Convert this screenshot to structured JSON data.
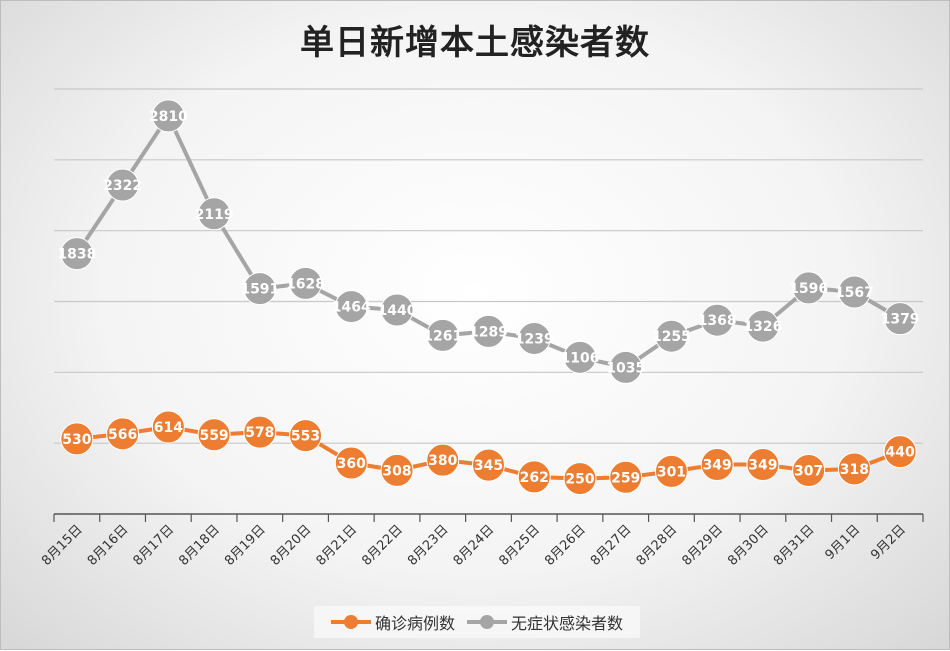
{
  "chart_data": {
    "type": "line",
    "title": "单日新增本土感染者数",
    "categories": [
      "8月15日",
      "8月16日",
      "8月17日",
      "8月18日",
      "8月19日",
      "8月20日",
      "8月21日",
      "8月22日",
      "8月23日",
      "8月24日",
      "8月25日",
      "8月26日",
      "8月27日",
      "8月28日",
      "8月29日",
      "8月30日",
      "8月31日",
      "9月1日",
      "9月2日"
    ],
    "series": [
      {
        "name": "确诊病例数",
        "color": "#ed7d31",
        "values": [
          530,
          566,
          614,
          559,
          578,
          553,
          360,
          308,
          380,
          345,
          262,
          250,
          259,
          301,
          349,
          349,
          307,
          318,
          440
        ]
      },
      {
        "name": "无症状感染者数",
        "color": "#a5a5a5",
        "values": [
          1838,
          2322,
          2810,
          2119,
          1591,
          1628,
          1464,
          1440,
          1261,
          1289,
          1239,
          1106,
          1035,
          1255,
          1368,
          1326,
          1596,
          1567,
          1379
        ]
      }
    ],
    "ylim": [
      0,
      3000
    ],
    "grid": true,
    "legend_position": "bottom",
    "xlabel": "",
    "ylabel": ""
  }
}
